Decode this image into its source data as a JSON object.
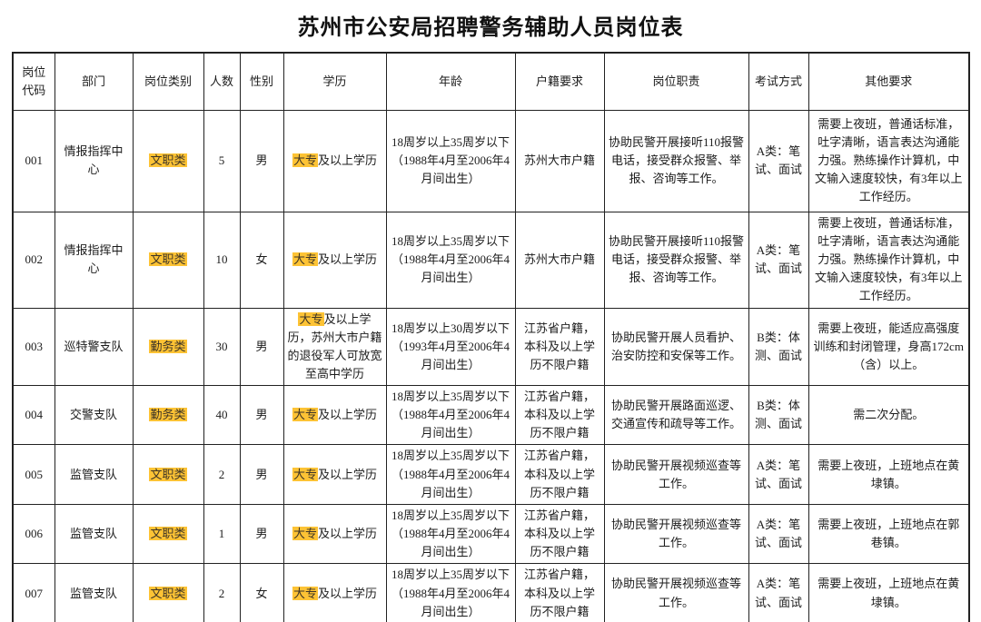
{
  "page_title": "苏州市公安局招聘警务辅助人员岗位表",
  "highlight_color": "#fdc335",
  "table": {
    "headers": [
      "岗位代码",
      "部门",
      "岗位类别",
      "人数",
      "性别",
      "学历",
      "年龄",
      "户籍要求",
      "岗位职责",
      "考试方式",
      "其他要求"
    ],
    "rows": [
      {
        "code": "001",
        "department": "情报指挥中心",
        "category": "文职类",
        "count": "5",
        "gender": "男",
        "education_highlight": "大专",
        "education_rest": "及以上学历",
        "age": "18周岁以上35周岁以下（1988年4月至2006年4月间出生）",
        "household": "苏州大市户籍",
        "duty": "协助民警开展接听110报警电话，接受群众报警、举报、咨询等工作。",
        "exam": "A类：笔试、面试",
        "other": "需要上夜班，普通话标准，吐字清晰，语言表达沟通能力强。熟练操作计算机，中文输入速度较快，有3年以上工作经历。"
      },
      {
        "code": "002",
        "department": "情报指挥中心",
        "category": "文职类",
        "count": "10",
        "gender": "女",
        "education_highlight": "大专",
        "education_rest": "及以上学历",
        "age": "18周岁以上35周岁以下（1988年4月至2006年4月间出生）",
        "household": "苏州大市户籍",
        "duty": "协助民警开展接听110报警电话，接受群众报警、举报、咨询等工作。",
        "exam": "A类：笔试、面试",
        "other": "需要上夜班，普通话标准，吐字清晰，语言表达沟通能力强。熟练操作计算机，中文输入速度较快，有3年以上工作经历。"
      },
      {
        "code": "003",
        "department": "巡特警支队",
        "category": "勤务类",
        "count": "30",
        "gender": "男",
        "education_highlight": "大专",
        "education_rest": "及以上学历，苏州大市户籍的退役军人可放宽至高中学历",
        "age": "18周岁以上30周岁以下（1993年4月至2006年4月间出生）",
        "household": "江苏省户籍，本科及以上学历不限户籍",
        "duty": "协助民警开展人员看护、治安防控和安保等工作。",
        "exam": "B类：体测、面试",
        "other": "需要上夜班，能适应高强度训练和封闭管理，身高172cm（含）以上。"
      },
      {
        "code": "004",
        "department": "交警支队",
        "category": "勤务类",
        "count": "40",
        "gender": "男",
        "education_highlight": "大专",
        "education_rest": "及以上学历",
        "age": "18周岁以上35周岁以下（1988年4月至2006年4月间出生）",
        "household": "江苏省户籍，本科及以上学历不限户籍",
        "duty": "协助民警开展路面巡逻、交通宣传和疏导等工作。",
        "exam": "B类：体测、面试",
        "other": "需二次分配。"
      },
      {
        "code": "005",
        "department": "监管支队",
        "category": "文职类",
        "count": "2",
        "gender": "男",
        "education_highlight": "大专",
        "education_rest": "及以上学历",
        "age": "18周岁以上35周岁以下（1988年4月至2006年4月间出生）",
        "household": "江苏省户籍，本科及以上学历不限户籍",
        "duty": "协助民警开展视频巡查等工作。",
        "exam": "A类：笔试、面试",
        "other": "需要上夜班，上班地点在黄埭镇。"
      },
      {
        "code": "006",
        "department": "监管支队",
        "category": "文职类",
        "count": "1",
        "gender": "男",
        "education_highlight": "大专",
        "education_rest": "及以上学历",
        "age": "18周岁以上35周岁以下（1988年4月至2006年4月间出生）",
        "household": "江苏省户籍，本科及以上学历不限户籍",
        "duty": "协助民警开展视频巡查等工作。",
        "exam": "A类：笔试、面试",
        "other": "需要上夜班，上班地点在郭巷镇。"
      },
      {
        "code": "007",
        "department": "监管支队",
        "category": "文职类",
        "count": "2",
        "gender": "女",
        "education_highlight": "大专",
        "education_rest": "及以上学历",
        "age": "18周岁以上35周岁以下（1988年4月至2006年4月间出生）",
        "household": "江苏省户籍，本科及以上学历不限户籍",
        "duty": "协助民警开展视频巡查等工作。",
        "exam": "A类：笔试、面试",
        "other": "需要上夜班，上班地点在黄埭镇。"
      }
    ]
  }
}
